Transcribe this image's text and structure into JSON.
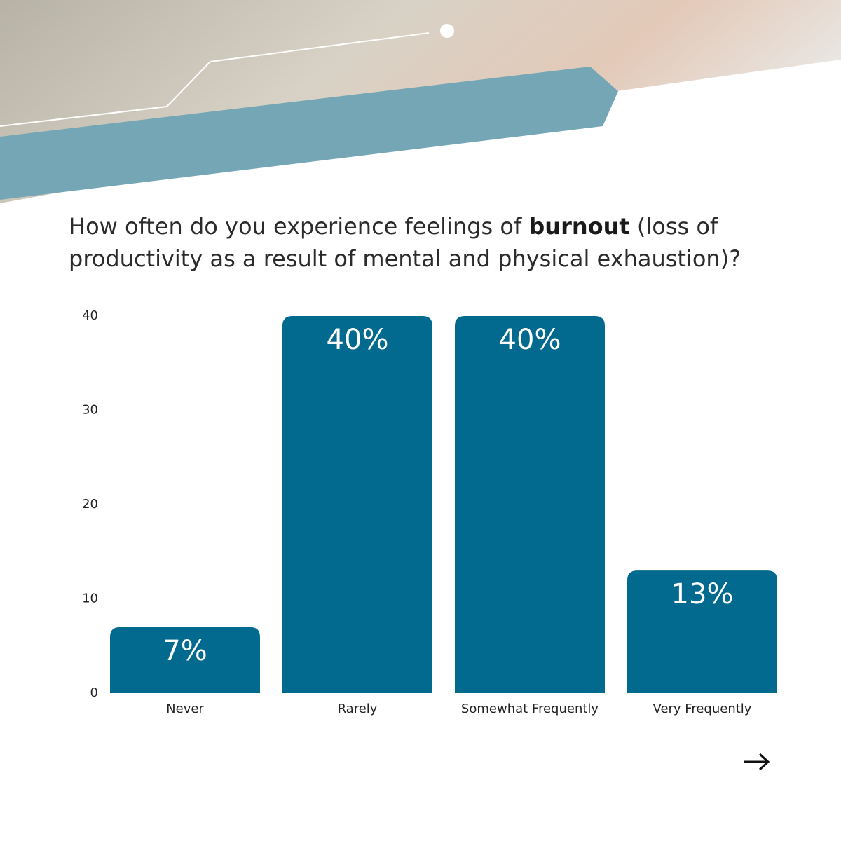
{
  "chart_data": {
    "type": "bar",
    "title": [
      "How often do you experience feelings of",
      "burnout",
      "(loss of productivity as a result of mental and physical exhaustion)?"
    ],
    "categories": [
      "Never",
      "Rarely",
      "Somewhat Frequently",
      "Very Frequently"
    ],
    "values": [
      7,
      40,
      40,
      13
    ],
    "value_labels": [
      "7%",
      "40%",
      "40%",
      "13%"
    ],
    "color": "#02698f",
    "ylim": [
      0,
      40
    ],
    "yticks": [
      0,
      10,
      20,
      30,
      40
    ],
    "grid": false
  }
}
